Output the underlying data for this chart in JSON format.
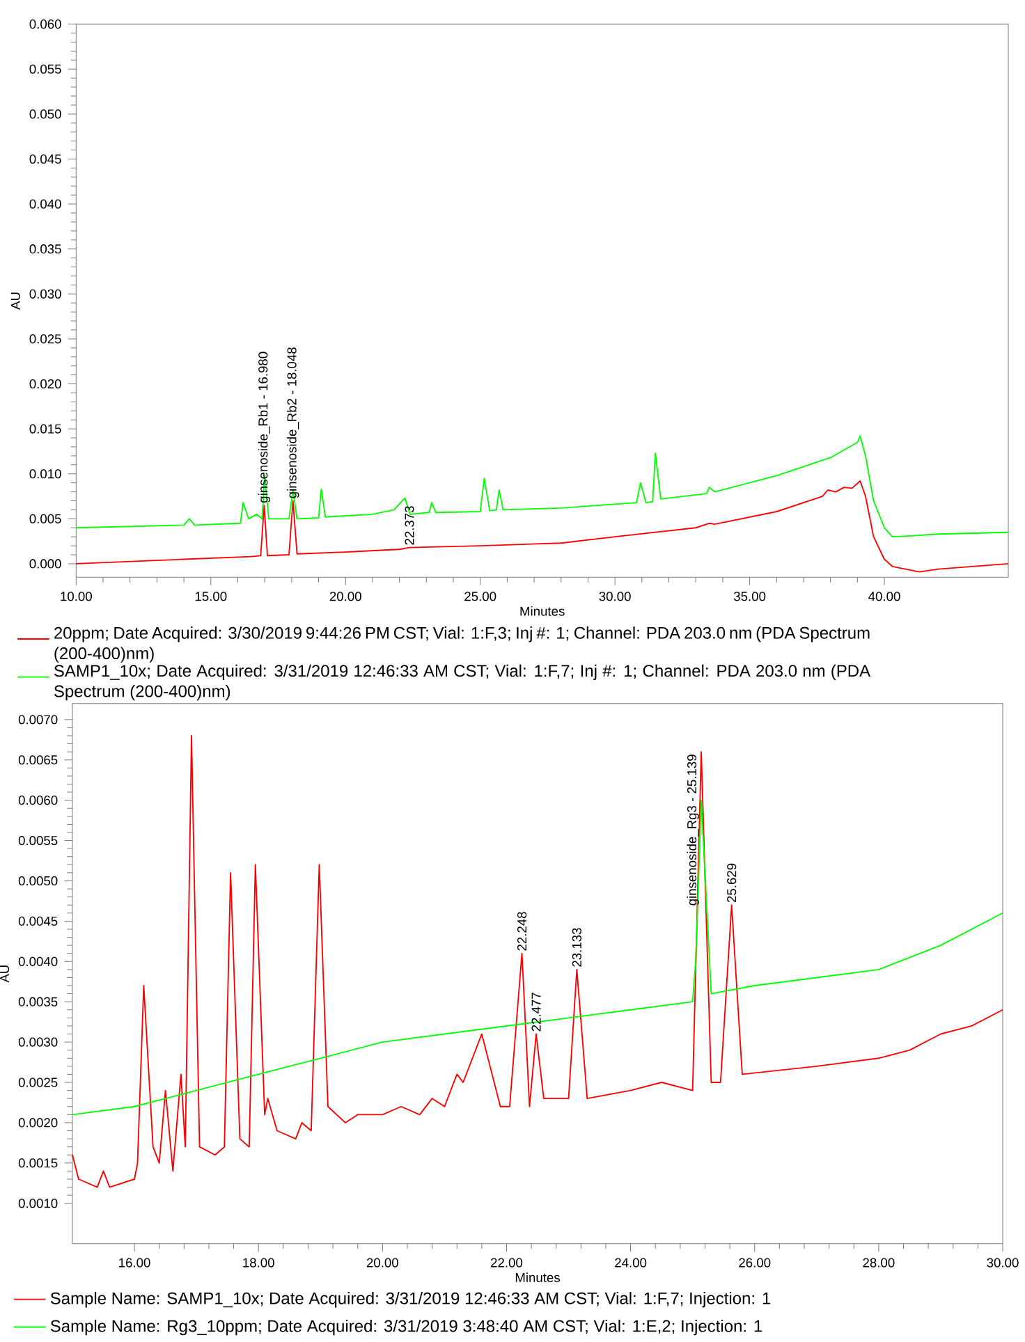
{
  "chart_data": [
    {
      "type": "line",
      "xlabel": "Minutes",
      "ylabel": "AU",
      "legend": "bottom",
      "xlim": [
        10,
        44.6
      ],
      "ylim": [
        -0.0015,
        0.06
      ],
      "xticks": [
        {
          "value": 10,
          "label": "10.00"
        },
        {
          "value": 15,
          "label": "15.00"
        },
        {
          "value": 20,
          "label": "20.00"
        },
        {
          "value": 25,
          "label": "25.00"
        },
        {
          "value": 30,
          "label": "30.00"
        },
        {
          "value": 35,
          "label": "35.00"
        },
        {
          "value": 40,
          "label": "40.00"
        }
      ],
      "yticks": [
        {
          "value": 0,
          "label": "0.000"
        },
        {
          "value": 0.005,
          "label": "0.005"
        },
        {
          "value": 0.01,
          "label": "0.010"
        },
        {
          "value": 0.015,
          "label": "0.015"
        },
        {
          "value": 0.02,
          "label": "0.020"
        },
        {
          "value": 0.025,
          "label": "0.025"
        },
        {
          "value": 0.03,
          "label": "0.030"
        },
        {
          "value": 0.035,
          "label": "0.035"
        },
        {
          "value": 0.04,
          "label": "0.040"
        },
        {
          "value": 0.045,
          "label": "0.045"
        },
        {
          "value": 0.05,
          "label": "0.050"
        },
        {
          "value": 0.055,
          "label": "0.055"
        },
        {
          "value": 0.06,
          "label": "0.060"
        }
      ],
      "series": [
        {
          "name": "20ppm;   Date Acquired: 3/30/2019 9:44:26 PM CST;   Vial: 1:F,3;   Inj #: 1;   Channel: PDA 203.0 nm (PDA Spectrum (200-400)nm)",
          "color": "#ff0000",
          "x": [
            10,
            14,
            16.5,
            16.85,
            16.98,
            17.1,
            17.9,
            18.048,
            18.2,
            20,
            22,
            22.373,
            25,
            28,
            30,
            33,
            33.5,
            33.7,
            36,
            37.7,
            37.9,
            38.2,
            38.5,
            38.8,
            39.1,
            39.3,
            39.6,
            40.0,
            40.3,
            41.3,
            42,
            44.6
          ],
          "values": [
            0.0,
            0.0005,
            0.0008,
            0.0009,
            0.0065,
            0.0009,
            0.001,
            0.007,
            0.0011,
            0.0013,
            0.0016,
            0.0018,
            0.002,
            0.0023,
            0.003,
            0.004,
            0.0045,
            0.0044,
            0.0058,
            0.0075,
            0.0082,
            0.008,
            0.0085,
            0.0084,
            0.0092,
            0.0075,
            0.003,
            0.0005,
            -0.0003,
            -0.0009,
            -0.0006,
            0.0
          ]
        },
        {
          "name": "SAMP1_10x;   Date Acquired: 3/31/2019 12:46:33 AM CST;   Vial: 1:F,7;   Inj #: 1;   Channel: PDA 203.0 nm (PDA Spectrum (200-400)nm)",
          "color": "#00ff00",
          "x": [
            10,
            14,
            14.2,
            14.4,
            16.1,
            16.2,
            16.4,
            16.7,
            16.9,
            17.0,
            17.15,
            17.9,
            18.05,
            18.2,
            19.0,
            19.1,
            19.25,
            21,
            21.8,
            22.2,
            22.4,
            23.1,
            23.2,
            23.35,
            25,
            25.15,
            25.35,
            25.6,
            25.7,
            25.85,
            28,
            30.8,
            30.95,
            31.15,
            31.4,
            31.5,
            31.7,
            33.4,
            33.5,
            33.7,
            36,
            38,
            39,
            39.1,
            39.3,
            39.6,
            40.0,
            40.3,
            41,
            42,
            44.6
          ],
          "values": [
            0.004,
            0.0043,
            0.005,
            0.0043,
            0.0045,
            0.0068,
            0.005,
            0.0055,
            0.005,
            0.0098,
            0.005,
            0.005,
            0.0082,
            0.005,
            0.0051,
            0.0083,
            0.0052,
            0.0055,
            0.006,
            0.0073,
            0.0055,
            0.0057,
            0.0068,
            0.0057,
            0.0058,
            0.0095,
            0.0059,
            0.006,
            0.0082,
            0.006,
            0.0062,
            0.0068,
            0.009,
            0.0068,
            0.0069,
            0.0123,
            0.0072,
            0.0078,
            0.0085,
            0.008,
            0.0098,
            0.0118,
            0.0135,
            0.0142,
            0.012,
            0.007,
            0.004,
            0.003,
            0.0031,
            0.0033,
            0.0035
          ]
        }
      ],
      "annotations": [
        {
          "text": "ginsenoside_Rb1 - 16.980",
          "x": 16.98,
          "y": 0.0065
        },
        {
          "text": "ginsenoside_Rb2 - 18.048",
          "x": 18.048,
          "y": 0.007
        },
        {
          "text": "22.373",
          "x": 22.373,
          "y": 0.0018
        }
      ]
    },
    {
      "type": "line",
      "xlabel": "Minutes",
      "ylabel": "AU",
      "legend": "bottom",
      "xlim": [
        15,
        30
      ],
      "ylim": [
        0.0005,
        0.0072
      ],
      "xticks": [
        {
          "value": 16,
          "label": "16.00"
        },
        {
          "value": 18,
          "label": "18.00"
        },
        {
          "value": 20,
          "label": "20.00"
        },
        {
          "value": 22,
          "label": "22.00"
        },
        {
          "value": 24,
          "label": "24.00"
        },
        {
          "value": 26,
          "label": "26.00"
        },
        {
          "value": 28,
          "label": "28.00"
        },
        {
          "value": 30,
          "label": "30.00"
        }
      ],
      "yticks": [
        {
          "value": 0.001,
          "label": "0.0010"
        },
        {
          "value": 0.0015,
          "label": "0.0015"
        },
        {
          "value": 0.002,
          "label": "0.0020"
        },
        {
          "value": 0.0025,
          "label": "0.0025"
        },
        {
          "value": 0.003,
          "label": "0.0030"
        },
        {
          "value": 0.0035,
          "label": "0.0035"
        },
        {
          "value": 0.004,
          "label": "0.0040"
        },
        {
          "value": 0.0045,
          "label": "0.0045"
        },
        {
          "value": 0.005,
          "label": "0.0050"
        },
        {
          "value": 0.0055,
          "label": "0.0055"
        },
        {
          "value": 0.006,
          "label": "0.0060"
        },
        {
          "value": 0.0065,
          "label": "0.0065"
        },
        {
          "value": 0.007,
          "label": "0.0070"
        }
      ],
      "series": [
        {
          "name": "Sample Name: SAMP1_10x;   Date Acquired: 3/31/2019 12:46:33 AM CST;   Vial: 1:F,7; Injection: 1",
          "color": "#ff0000",
          "x": [
            15.0,
            15.1,
            15.4,
            15.5,
            15.6,
            16.0,
            16.05,
            16.15,
            16.3,
            16.4,
            16.5,
            16.62,
            16.75,
            16.82,
            16.92,
            17.05,
            17.3,
            17.45,
            17.55,
            17.7,
            17.85,
            17.95,
            18.1,
            18.15,
            18.3,
            18.6,
            18.7,
            18.85,
            18.98,
            19.12,
            19.4,
            19.6,
            20.0,
            20.3,
            20.6,
            20.8,
            21.0,
            21.2,
            21.3,
            21.6,
            21.9,
            22.05,
            22.248,
            22.37,
            22.477,
            22.6,
            23.0,
            23.133,
            23.3,
            24.0,
            24.5,
            25.0,
            25.139,
            25.3,
            25.45,
            25.629,
            25.8,
            27.0,
            28.0,
            28.5,
            29.0,
            29.5,
            30.0
          ],
          "values": [
            0.0016,
            0.0013,
            0.0012,
            0.0014,
            0.0012,
            0.0013,
            0.0015,
            0.0037,
            0.0017,
            0.0015,
            0.0024,
            0.0014,
            0.0026,
            0.0017,
            0.0068,
            0.0017,
            0.0016,
            0.0017,
            0.0051,
            0.0018,
            0.0017,
            0.0052,
            0.0021,
            0.0023,
            0.0019,
            0.0018,
            0.002,
            0.0019,
            0.0052,
            0.0022,
            0.002,
            0.0021,
            0.0021,
            0.0022,
            0.0021,
            0.0023,
            0.0022,
            0.0026,
            0.0025,
            0.0031,
            0.0022,
            0.0022,
            0.0041,
            0.0022,
            0.0031,
            0.0023,
            0.0023,
            0.0039,
            0.0023,
            0.0024,
            0.0025,
            0.0024,
            0.0066,
            0.0025,
            0.0025,
            0.0047,
            0.0026,
            0.0027,
            0.0028,
            0.0029,
            0.0031,
            0.0032,
            0.0034
          ]
        },
        {
          "name": "Sample Name: Rg3_10ppm;   Date Acquired: 3/31/2019 3:48:40 AM CST;   Vial: 1:E,2; Injection: 1",
          "color": "#00ff00",
          "x": [
            15,
            16,
            17,
            18,
            19,
            20,
            21,
            22,
            23,
            24,
            25.0,
            25.05,
            25.139,
            25.3,
            26,
            27,
            28,
            29,
            30
          ],
          "values": [
            0.0021,
            0.0022,
            0.0024,
            0.0026,
            0.0028,
            0.003,
            0.0031,
            0.0032,
            0.0033,
            0.0034,
            0.0035,
            0.004,
            0.006,
            0.0036,
            0.0037,
            0.0038,
            0.0039,
            0.0042,
            0.0046
          ]
        }
      ],
      "annotations": [
        {
          "text": "22.248",
          "x": 22.248,
          "y": 0.0041
        },
        {
          "text": "22.477",
          "x": 22.477,
          "y": 0.0031
        },
        {
          "text": "23.133",
          "x": 23.133,
          "y": 0.0039
        },
        {
          "text": "ginsenoside_Rg3 - 25.139",
          "x": 25.139,
          "y": 0.0066
        },
        {
          "text": "25.629",
          "x": 25.629,
          "y": 0.0047
        }
      ]
    }
  ]
}
